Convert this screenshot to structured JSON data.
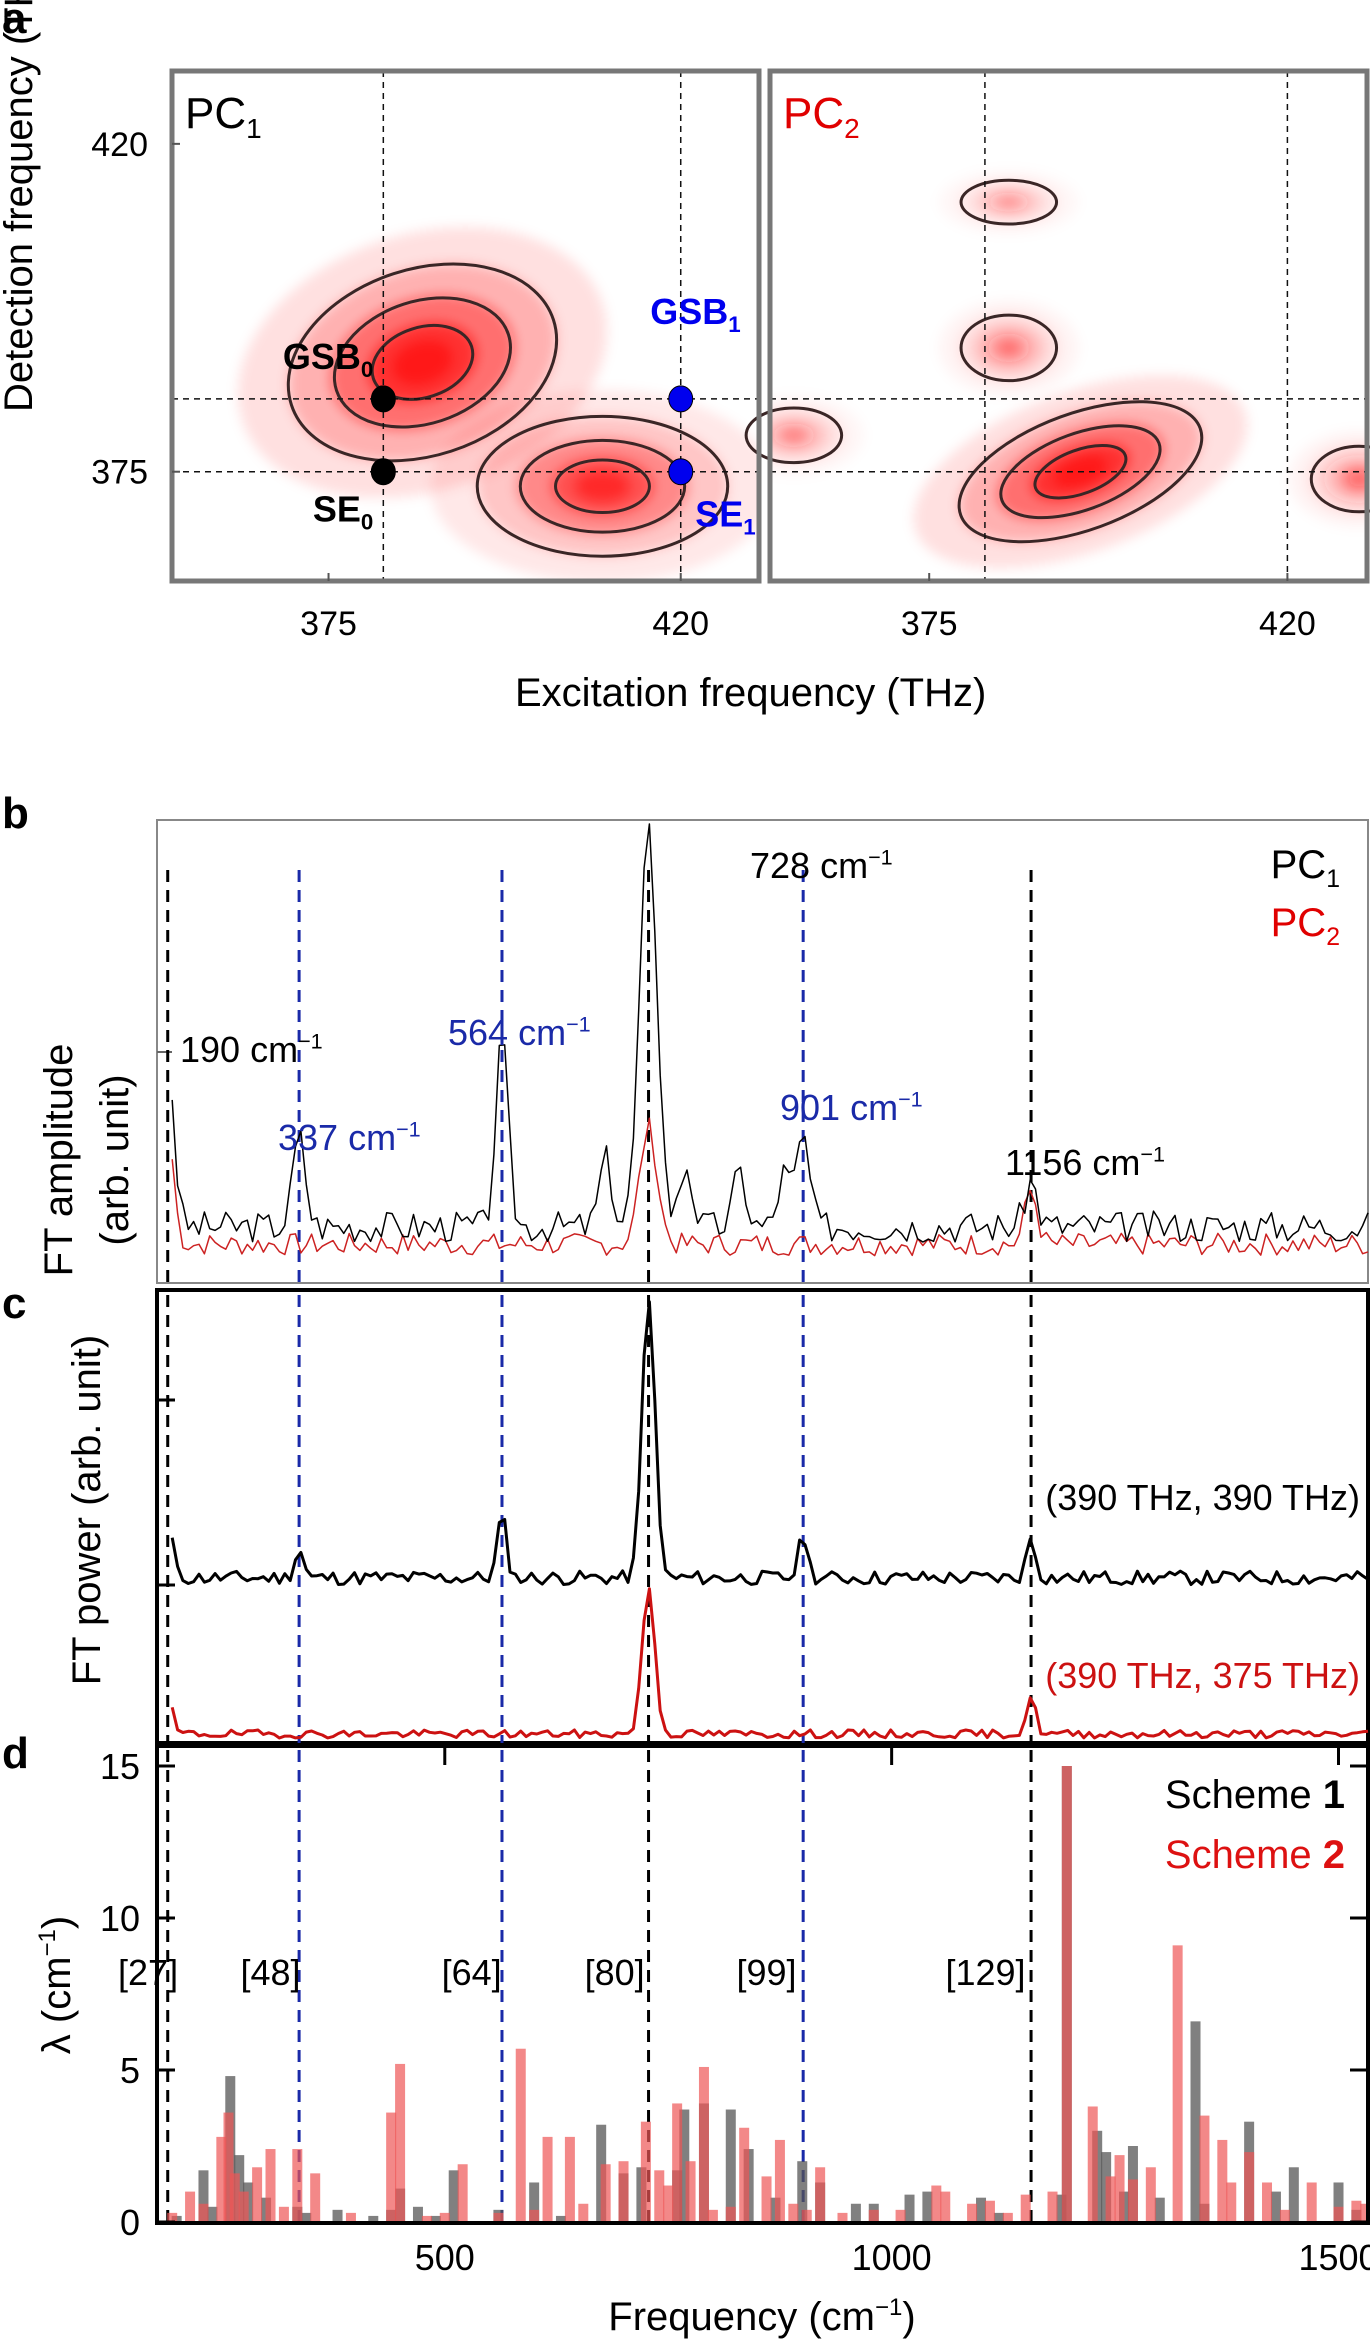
{
  "panel_labels": {
    "a": "a",
    "b": "b",
    "c": "c",
    "d": "d"
  },
  "chart_data": [
    {
      "panel": "a",
      "type": "heatmap",
      "ylabel": "Detection frequency (THz)",
      "xlabel": "Excitation frequency (THz)",
      "xlim": [
        355,
        430
      ],
      "ylim": [
        360,
        430
      ],
      "xticks": [
        375,
        420
      ],
      "yticks": [
        375,
        420
      ],
      "guide_lines": {
        "x": [
          382,
          420
        ],
        "y": [
          375,
          385
        ]
      },
      "subplots": [
        {
          "title": "PC",
          "title_sub": "1",
          "title_color": "#000000",
          "peaks": [
            {
              "x": 387,
              "y": 390,
              "amp": 1.0,
              "sx": 11,
              "sy": 8
            },
            {
              "x": 410,
              "y": 373,
              "amp": 0.75,
              "sx": 10,
              "sy": 6
            }
          ],
          "markers": [
            {
              "label": "GSB",
              "sub": "0",
              "x": 382,
              "y": 385,
              "color": "#000000"
            },
            {
              "label": "SE",
              "sub": "0",
              "x": 382,
              "y": 375,
              "color": "#000000"
            },
            {
              "label": "GSB",
              "sub": "1",
              "x": 420,
              "y": 385,
              "color": "#0000ee"
            },
            {
              "label": "SE",
              "sub": "1",
              "x": 420,
              "y": 375,
              "color": "#0000ee"
            }
          ]
        },
        {
          "title": "PC",
          "title_sub": "2",
          "title_color": "#e00000",
          "peaks": [
            {
              "x": 394,
              "y": 375,
              "amp": 1.0,
              "sx": 10,
              "sy": 5
            },
            {
              "x": 385,
              "y": 392,
              "amp": 0.35,
              "sx": 4,
              "sy": 3
            },
            {
              "x": 358,
              "y": 380,
              "amp": 0.3,
              "sx": 4,
              "sy": 2.5
            },
            {
              "x": 385,
              "y": 412,
              "amp": 0.25,
              "sx": 4,
              "sy": 2
            },
            {
              "x": 429,
              "y": 374,
              "amp": 0.4,
              "sx": 4,
              "sy": 3
            }
          ],
          "markers": []
        }
      ]
    },
    {
      "panel": "b",
      "type": "line",
      "ylabel_line1": "FT amplitude",
      "ylabel_line2": "(arb. unit)",
      "xlim": [
        178,
        1533
      ],
      "ylim": [
        0,
        1
      ],
      "legend": [
        {
          "label": "PC",
          "sub": "1",
          "color": "#000000"
        },
        {
          "label": "PC",
          "sub": "2",
          "color": "#e00000"
        }
      ],
      "legend_position": "top-right",
      "series": [
        {
          "name": "PC1",
          "color": "#000000",
          "baseline": 0.08,
          "peaks": [
            [
              190,
              0.38
            ],
            [
              337,
              0.2
            ],
            [
              564,
              0.41
            ],
            [
              728,
              0.88
            ],
            [
              901,
              0.2
            ],
            [
              1156,
              0.1
            ],
            [
              680,
              0.15
            ],
            [
              770,
              0.14
            ],
            [
              830,
              0.12
            ],
            [
              880,
              0.12
            ]
          ]
        },
        {
          "name": "PC2",
          "color": "#cc2222",
          "baseline": 0.05,
          "peaks": [
            [
              180,
              0.2
            ],
            [
              190,
              0.22
            ],
            [
              728,
              0.26
            ],
            [
              1156,
              0.12
            ]
          ]
        }
      ],
      "annotations": [
        {
          "text": "190 cm",
          "sup": "−1",
          "x": 190,
          "color": "#000000"
        },
        {
          "text": "337 cm",
          "sup": "−1",
          "x": 337,
          "color": "#1a2aa8"
        },
        {
          "text": "564 cm",
          "sup": "−1",
          "x": 564,
          "color": "#1a2aa8"
        },
        {
          "text": "728 cm",
          "sup": "−1",
          "x": 728,
          "color": "#000000"
        },
        {
          "text": "901 cm",
          "sup": "−1",
          "x": 901,
          "color": "#1a2aa8"
        },
        {
          "text": "1156 cm",
          "sup": "−1",
          "x": 1156,
          "color": "#000000"
        }
      ]
    },
    {
      "panel": "c",
      "type": "line",
      "ylabel": "FT power (arb. unit)",
      "xlim": [
        178,
        1533
      ],
      "series": [
        {
          "name": "(390 THz, 390 THz)",
          "color": "#000000",
          "baseline": 0.0,
          "peaks": [
            [
              190,
              0.22
            ],
            [
              337,
              0.1
            ],
            [
              564,
              0.22
            ],
            [
              728,
              1.0
            ],
            [
              901,
              0.15
            ],
            [
              1156,
              0.14
            ]
          ]
        },
        {
          "name": "(390 THz, 375 THz)",
          "color": "#cc1111",
          "baseline": 0.0,
          "peaks": [
            [
              190,
              0.14
            ],
            [
              728,
              0.55
            ],
            [
              1156,
              0.14
            ]
          ]
        }
      ],
      "labels": [
        {
          "text": "(390 THz, 390 THz)",
          "color": "#000000"
        },
        {
          "text": "(390 THz, 375 THz)",
          "color": "#cc1111"
        }
      ]
    },
    {
      "panel": "d",
      "type": "bar",
      "ylabel": "λ (cm",
      "ylabel_sup": "−1",
      "ylabel_end": ")",
      "xlabel": "Frequency (cm",
      "xlabel_sup": "−1",
      "xlabel_end": ")",
      "xlim": [
        178,
        1533
      ],
      "ylim": [
        0,
        15.5
      ],
      "xticks": [
        500,
        1000,
        1500
      ],
      "yticks": [
        0,
        5,
        10,
        15
      ],
      "legend": [
        {
          "label": "Scheme ",
          "bold": "1",
          "color": "#000000"
        },
        {
          "label": "Scheme ",
          "bold": "2",
          "color": "#dd1111"
        }
      ],
      "legend_position": "top-right",
      "mode_labels": [
        {
          "text": "[27]",
          "x": 168
        },
        {
          "text": "[48]",
          "x": 305
        },
        {
          "text": "[64]",
          "x": 530
        },
        {
          "text": "[80]",
          "x": 690
        },
        {
          "text": "[99]",
          "x": 860
        },
        {
          "text": "[129]",
          "x": 1105
        }
      ],
      "series": [
        {
          "name": "Scheme 1",
          "color": "#555555",
          "x": [
            200,
            230,
            240,
            260,
            270,
            280,
            300,
            335,
            345,
            380,
            420,
            440,
            450,
            470,
            490,
            510,
            560,
            600,
            630,
            675,
            700,
            720,
            760,
            768,
            790,
            820,
            840,
            870,
            900,
            920,
            960,
            980,
            1020,
            1040,
            1100,
            1120,
            1190,
            1196,
            1230,
            1240,
            1260,
            1270,
            1300,
            1340,
            1350,
            1400,
            1430,
            1450,
            1500,
            1520
          ],
          "values": [
            0.2,
            1.7,
            0.5,
            4.8,
            2.2,
            1.3,
            0.8,
            0.5,
            0.3,
            0.4,
            0.2,
            0.4,
            1.1,
            0.5,
            0.2,
            1.7,
            0.4,
            1.3,
            0.2,
            3.2,
            1.6,
            1.8,
            1.7,
            3.7,
            3.9,
            3.7,
            2.4,
            0.8,
            2.0,
            1.3,
            0.6,
            0.6,
            0.9,
            1.0,
            0.8,
            0.3,
            0.9,
            15.0,
            3.0,
            2.3,
            1.0,
            2.5,
            0.8,
            6.6,
            0.6,
            3.3,
            1.0,
            1.8,
            1.3,
            0.4
          ]
        },
        {
          "name": "Scheme 2",
          "color": "#ee5555",
          "x": [
            195,
            215,
            230,
            250,
            258,
            265,
            275,
            290,
            305,
            320,
            335,
            355,
            395,
            440,
            450,
            480,
            500,
            520,
            560,
            585,
            600,
            615,
            640,
            655,
            680,
            700,
            725,
            740,
            750,
            760,
            775,
            790,
            800,
            820,
            835,
            860,
            875,
            890,
            905,
            920,
            945,
            980,
            1010,
            1050,
            1060,
            1090,
            1110,
            1130,
            1150,
            1180,
            1196,
            1225,
            1245,
            1255,
            1270,
            1290,
            1320,
            1350,
            1370,
            1380,
            1400,
            1420,
            1440,
            1470,
            1500,
            1520,
            1530
          ],
          "values": [
            0.3,
            1.0,
            0.6,
            2.8,
            3.6,
            1.6,
            1.0,
            1.8,
            2.4,
            0.5,
            2.4,
            1.6,
            0.3,
            3.6,
            5.2,
            0.2,
            0.3,
            1.9,
            0.3,
            5.7,
            0.4,
            2.8,
            2.8,
            0.6,
            1.9,
            2.0,
            3.3,
            1.7,
            1.2,
            3.9,
            2.0,
            5.1,
            0.4,
            0.5,
            3.1,
            1.5,
            2.7,
            0.6,
            0.4,
            1.8,
            0.3,
            0.4,
            0.4,
            1.2,
            1.0,
            0.6,
            0.7,
            0.3,
            0.9,
            1.0,
            15.0,
            3.8,
            1.5,
            2.2,
            1.4,
            1.8,
            9.1,
            3.5,
            2.7,
            1.3,
            2.3,
            1.3,
            0.4,
            1.3,
            0.5,
            0.7,
            0.6
          ]
        }
      ]
    }
  ],
  "vertical_markers": [
    {
      "x": 190,
      "color": "#000000"
    },
    {
      "x": 337,
      "color": "#1a2aa8"
    },
    {
      "x": 564,
      "color": "#1a2aa8"
    },
    {
      "x": 728,
      "color": "#000000"
    },
    {
      "x": 901,
      "color": "#1a2aa8"
    },
    {
      "x": 1156,
      "color": "#000000"
    }
  ]
}
